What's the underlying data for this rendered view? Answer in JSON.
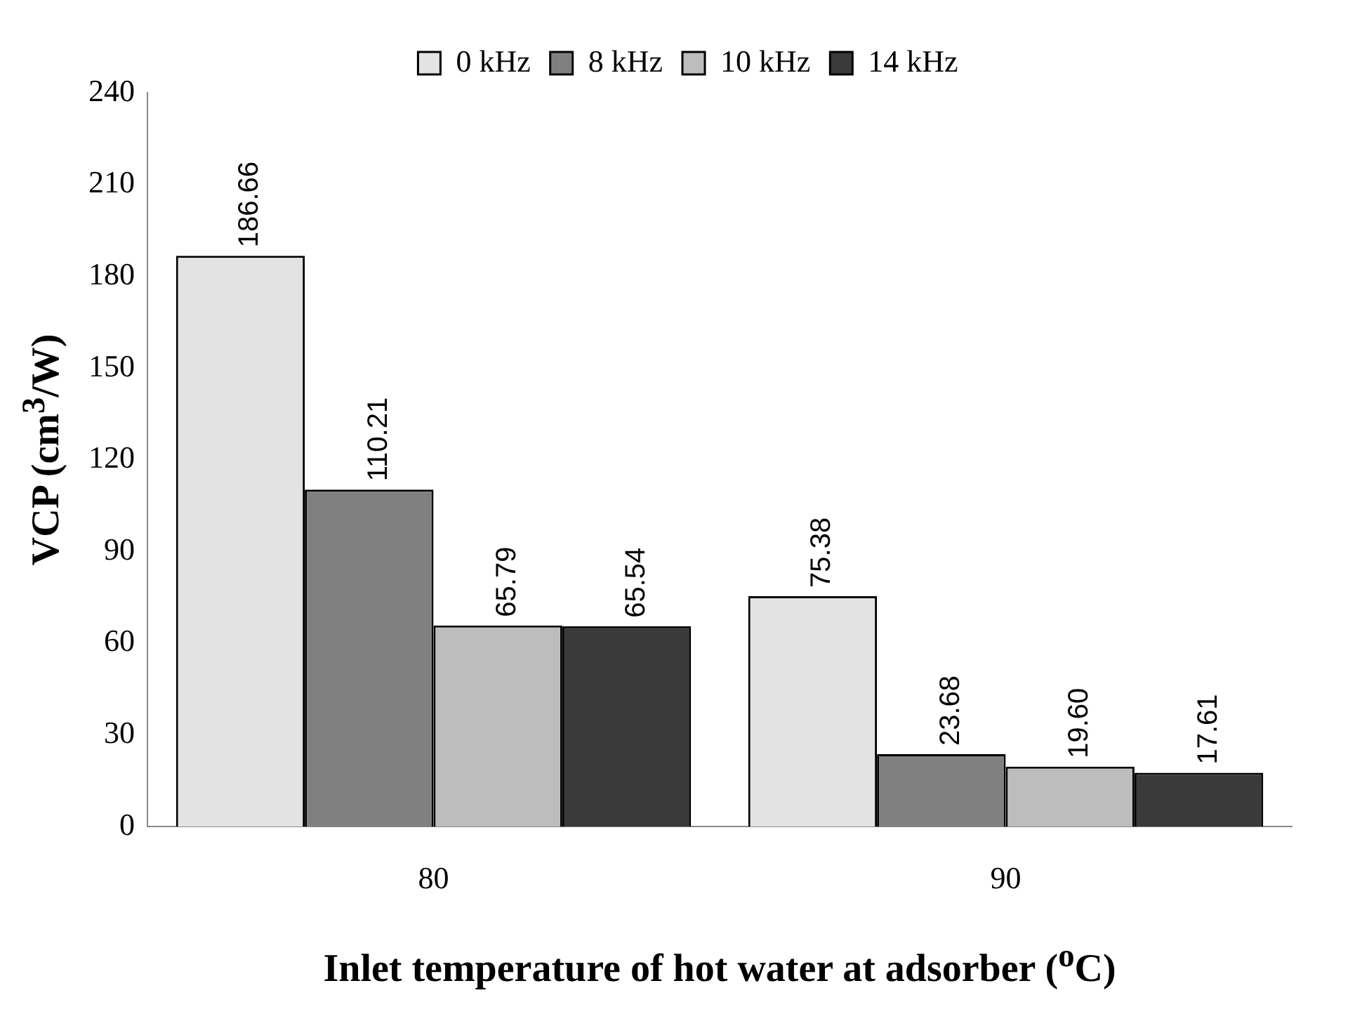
{
  "chart_data": {
    "type": "bar",
    "xlabel": "Inlet temperature of hot water at adsorber ($^{o}$C)",
    "ylabel": "VCP (cm$^{3}$/W)",
    "categories": [
      "80",
      "90"
    ],
    "series": [
      {
        "name": "0 kHz",
        "color": "#e3e3e3",
        "values": [
          186.66,
          75.38
        ],
        "value_labels": [
          "186.66",
          "75.38"
        ]
      },
      {
        "name": "8 kHz",
        "color": "#808080",
        "values": [
          110.21,
          23.68
        ],
        "value_labels": [
          "110.21",
          "23.68"
        ]
      },
      {
        "name": "10 kHz",
        "color": "#bdbdbd",
        "values": [
          65.79,
          19.6
        ],
        "value_labels": [
          "65.79",
          "19.60"
        ]
      },
      {
        "name": "14 kHz",
        "color": "#3a3a3a",
        "values": [
          65.54,
          17.61
        ],
        "value_labels": [
          "65.54",
          "17.61"
        ]
      }
    ],
    "ylim": [
      0,
      240
    ],
    "yticks": [
      0,
      30,
      60,
      90,
      120,
      150,
      180,
      210,
      240
    ],
    "grid": false,
    "legend": "top"
  }
}
